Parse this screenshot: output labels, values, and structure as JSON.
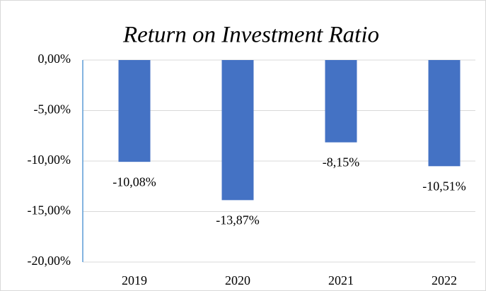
{
  "chart_data": {
    "type": "bar",
    "title": "Return on Investment Ratio",
    "categories": [
      "2019",
      "2020",
      "2021",
      "2022"
    ],
    "values": [
      -10.08,
      -13.87,
      -8.15,
      -10.51
    ],
    "value_labels": [
      "-10,08%",
      "-13,87%",
      "-8,15%",
      "-10,51%"
    ],
    "color": "#4472c4",
    "ylim": [
      -20,
      0
    ],
    "yticks": [
      {
        "value": 0,
        "label": "0,00%"
      },
      {
        "value": -5,
        "label": "-5,00%"
      },
      {
        "value": -10,
        "label": "-10,00%"
      },
      {
        "value": -15,
        "label": "-15,00%"
      },
      {
        "value": -20,
        "label": "-20,00%"
      }
    ],
    "grid": true
  }
}
